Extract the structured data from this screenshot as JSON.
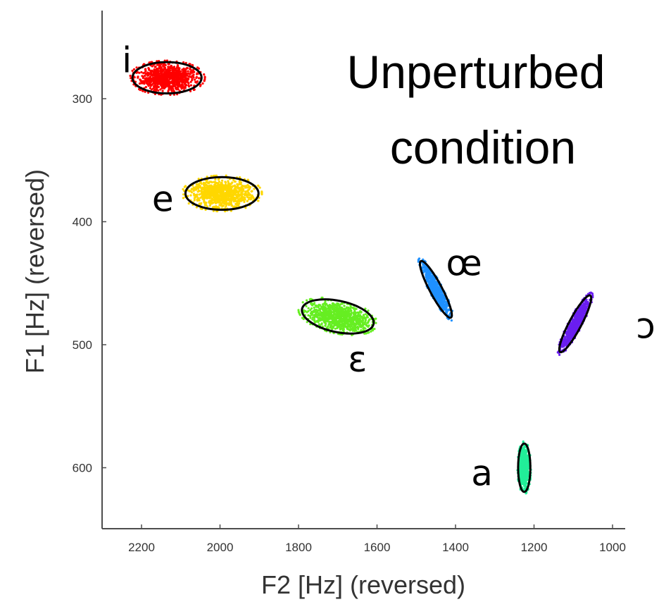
{
  "chart_data": {
    "type": "scatter",
    "title": [
      "Unperturbed",
      "condition"
    ],
    "xlabel": "F2 [Hz] (reversed)",
    "ylabel": "F1 [Hz] (reversed)",
    "xlim": [
      2300,
      950
    ],
    "ylim": [
      650,
      240
    ],
    "x_reversed": true,
    "y_reversed": true,
    "xticks": [
      2200,
      2000,
      1800,
      1600,
      1400,
      1200,
      1000
    ],
    "yticks": [
      300,
      400,
      500,
      600
    ],
    "grid": false,
    "series": [
      {
        "label": "i",
        "color": "#ff0000",
        "center": [
          2135,
          283
        ],
        "ellipse_axes": [
          90,
          22
        ],
        "ellipse_rotation_deg": 0,
        "points": 900
      },
      {
        "label": "e",
        "color": "#ffd700",
        "center": [
          1995,
          377
        ],
        "ellipse_axes": [
          95,
          23
        ],
        "ellipse_rotation_deg": 0,
        "points": 900
      },
      {
        "label": "ɛ",
        "color": "#66ee22",
        "center": [
          1700,
          477
        ],
        "ellipse_axes": [
          95,
          22
        ],
        "ellipse_rotation_deg": 12,
        "points": 900
      },
      {
        "label": "œ",
        "color": "#1e90ff",
        "center": [
          1450,
          455
        ],
        "ellipse_axes": [
          16,
          45
        ],
        "ellipse_rotation_deg": -28,
        "points": 600
      },
      {
        "label": "ɔ",
        "color": "#6a1ef0",
        "center": [
          1095,
          483
        ],
        "ellipse_axes": [
          16,
          45
        ],
        "ellipse_rotation_deg": 28,
        "points": 700
      },
      {
        "label": "a",
        "color": "#22ee99",
        "center": [
          1225,
          600
        ],
        "ellipse_axes": [
          16,
          34
        ],
        "ellipse_rotation_deg": 0,
        "points": 700
      }
    ]
  }
}
